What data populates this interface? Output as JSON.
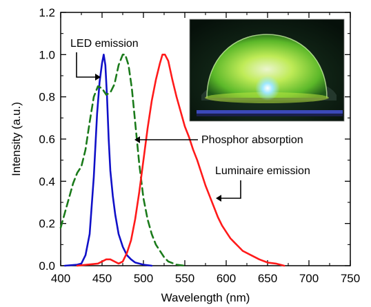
{
  "chart_data": {
    "type": "line",
    "title": "",
    "xlabel": "Wavelength (nm)",
    "ylabel": "Intensity (a.u.)",
    "xlim": [
      400,
      750
    ],
    "ylim": [
      0.0,
      1.2
    ],
    "x_ticks": [
      "400",
      "450",
      "500",
      "550",
      "600",
      "650",
      "700",
      "750"
    ],
    "y_ticks": [
      "0.0",
      "0.2",
      "0.4",
      "0.6",
      "0.8",
      "1.0",
      "1.2"
    ],
    "grid": false,
    "legend": "none",
    "series": [
      {
        "name": "LED emission",
        "color": "#1010c8",
        "style": "solid",
        "points": [
          [
            405,
            0.0
          ],
          [
            420,
            0.005
          ],
          [
            425,
            0.01
          ],
          [
            430,
            0.05
          ],
          [
            435,
            0.15
          ],
          [
            440,
            0.42
          ],
          [
            444,
            0.72
          ],
          [
            447,
            0.87
          ],
          [
            450,
            0.96
          ],
          [
            452,
            1.0
          ],
          [
            454,
            0.95
          ],
          [
            456,
            0.8
          ],
          [
            458,
            0.6
          ],
          [
            460,
            0.45
          ],
          [
            463,
            0.33
          ],
          [
            466,
            0.24
          ],
          [
            470,
            0.15
          ],
          [
            475,
            0.09
          ],
          [
            480,
            0.05
          ],
          [
            485,
            0.03
          ],
          [
            490,
            0.015
          ],
          [
            500,
            0.005
          ],
          [
            510,
            0.0
          ]
        ]
      },
      {
        "name": "Phosphor absorption",
        "color": "#1a7a1a",
        "style": "dashed",
        "points": [
          [
            400,
            0.18
          ],
          [
            405,
            0.25
          ],
          [
            410,
            0.32
          ],
          [
            415,
            0.39
          ],
          [
            420,
            0.44
          ],
          [
            425,
            0.47
          ],
          [
            430,
            0.55
          ],
          [
            435,
            0.68
          ],
          [
            440,
            0.8
          ],
          [
            445,
            0.85
          ],
          [
            450,
            0.84
          ],
          [
            455,
            0.81
          ],
          [
            460,
            0.82
          ],
          [
            465,
            0.86
          ],
          [
            470,
            0.95
          ],
          [
            475,
            1.0
          ],
          [
            478,
            1.0
          ],
          [
            482,
            0.95
          ],
          [
            486,
            0.84
          ],
          [
            490,
            0.68
          ],
          [
            495,
            0.48
          ],
          [
            500,
            0.32
          ],
          [
            505,
            0.22
          ],
          [
            510,
            0.15
          ],
          [
            515,
            0.1
          ],
          [
            520,
            0.07
          ],
          [
            525,
            0.04
          ],
          [
            530,
            0.02
          ],
          [
            540,
            0.005
          ],
          [
            550,
            0.0
          ]
        ]
      },
      {
        "name": "Luminaire emission",
        "color": "#ff1a1a",
        "style": "solid",
        "points": [
          [
            420,
            0.0
          ],
          [
            445,
            0.01
          ],
          [
            450,
            0.02
          ],
          [
            455,
            0.03
          ],
          [
            460,
            0.03
          ],
          [
            465,
            0.02
          ],
          [
            470,
            0.01
          ],
          [
            475,
            0.02
          ],
          [
            480,
            0.06
          ],
          [
            485,
            0.12
          ],
          [
            490,
            0.22
          ],
          [
            495,
            0.35
          ],
          [
            500,
            0.5
          ],
          [
            505,
            0.65
          ],
          [
            510,
            0.78
          ],
          [
            515,
            0.88
          ],
          [
            520,
            0.96
          ],
          [
            523,
            1.0
          ],
          [
            526,
            1.0
          ],
          [
            530,
            0.97
          ],
          [
            535,
            0.88
          ],
          [
            540,
            0.8
          ],
          [
            545,
            0.73
          ],
          [
            550,
            0.66
          ],
          [
            555,
            0.61
          ],
          [
            560,
            0.55
          ],
          [
            565,
            0.5
          ],
          [
            570,
            0.44
          ],
          [
            575,
            0.38
          ],
          [
            580,
            0.33
          ],
          [
            585,
            0.28
          ],
          [
            590,
            0.23
          ],
          [
            595,
            0.19
          ],
          [
            600,
            0.16
          ],
          [
            605,
            0.13
          ],
          [
            610,
            0.11
          ],
          [
            615,
            0.09
          ],
          [
            620,
            0.07
          ],
          [
            630,
            0.05
          ],
          [
            640,
            0.03
          ],
          [
            650,
            0.015
          ],
          [
            660,
            0.01
          ],
          [
            670,
            0.0
          ]
        ]
      }
    ],
    "annotations": [
      {
        "text": "LED emission"
      },
      {
        "text": "Phosphor absorption"
      },
      {
        "text": "Luminaire emission"
      }
    ],
    "inset": {
      "description": "photograph of glowing green dome luminaire"
    }
  }
}
